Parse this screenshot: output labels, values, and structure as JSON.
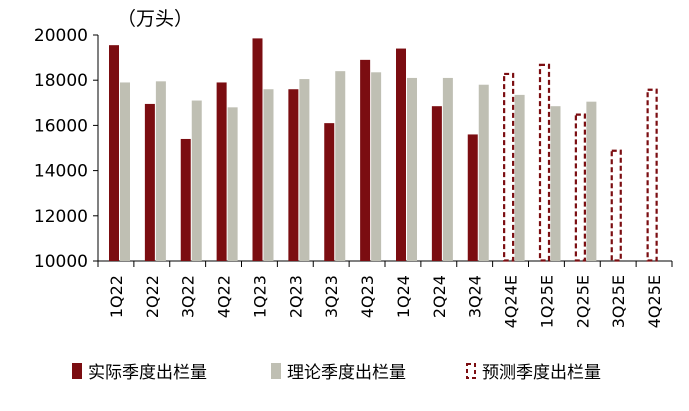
{
  "chart_data": {
    "type": "bar",
    "unit_label": "（万头）",
    "categories": [
      "1Q22",
      "2Q22",
      "3Q22",
      "4Q22",
      "1Q23",
      "2Q23",
      "3Q23",
      "4Q23",
      "1Q24",
      "2Q24",
      "3Q24",
      "4Q24E",
      "1Q25E",
      "2Q25E",
      "3Q25E",
      "4Q25E"
    ],
    "ylim": [
      10000,
      20000
    ],
    "yticks": [
      10000,
      12000,
      14000,
      16000,
      18000,
      20000
    ],
    "series": [
      {
        "name": "实际季度出栏量",
        "style": "solid",
        "color": "#7B0D11",
        "values": [
          19550,
          16950,
          15400,
          17900,
          19850,
          17600,
          16100,
          18900,
          19400,
          16850,
          15600,
          null,
          null,
          null,
          null,
          null
        ]
      },
      {
        "name": "理论季度出栏量",
        "style": "solid",
        "color": "#BFBFB3",
        "values": [
          17900,
          17950,
          17100,
          16800,
          17600,
          18050,
          18400,
          18350,
          18100,
          18100,
          17800,
          17350,
          16850,
          17050,
          null,
          null
        ]
      },
      {
        "name": "预测季度出栏量",
        "style": "dashed",
        "color": "#7B0D11",
        "values": [
          null,
          null,
          null,
          null,
          null,
          null,
          null,
          null,
          null,
          null,
          null,
          18300,
          18700,
          16500,
          14900,
          17600
        ]
      }
    ],
    "legend_position": "bottom"
  }
}
